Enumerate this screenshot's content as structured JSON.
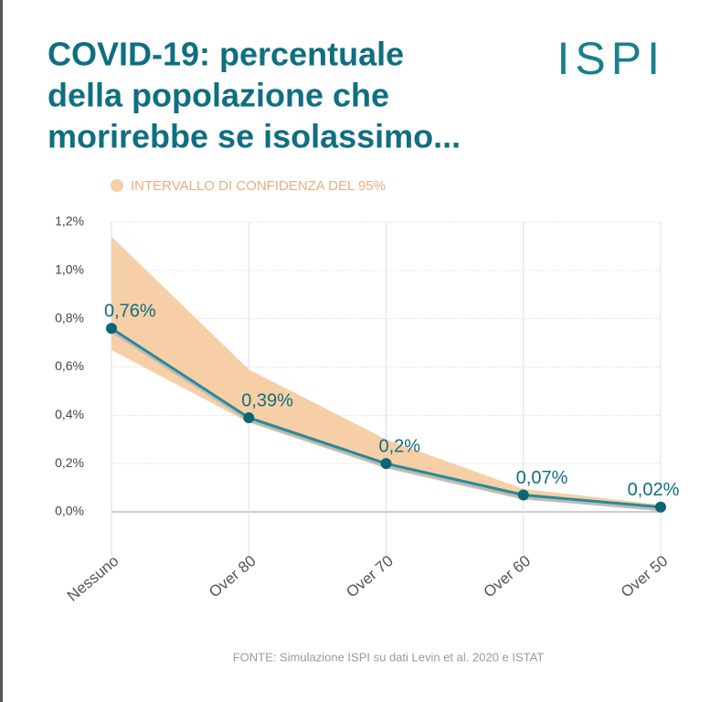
{
  "chart_data": {
    "type": "line",
    "title": [
      "COVID-19: percentuale",
      "della popolazione che",
      "morirebbe se isolassimo..."
    ],
    "logo": "ISPI",
    "source": "FONTE: Simulazione ISPI su dati Levin et al. 2020 e ISTAT",
    "categories": [
      "Nessuno",
      "Over 80",
      "Over 70",
      "Over 60",
      "Over 50"
    ],
    "series": [
      {
        "color": "#2a8a96",
        "values": [
          0.76,
          0.39,
          0.2,
          0.07,
          0.02
        ],
        "value_labels": [
          "0,76%",
          "0,39%",
          "0,2%",
          "0,07%",
          "0,02%"
        ]
      }
    ],
    "band": {
      "name": "INTERVALLO DI CONFIDENZA DEL 95%",
      "color": "#f7cfa6",
      "upper": [
        1.14,
        0.59,
        0.3,
        0.095,
        0.03
      ],
      "lower": [
        0.67,
        0.37,
        0.18,
        0.05,
        0.01
      ]
    },
    "ylim": [
      0,
      1.2
    ],
    "yticks": [
      {
        "value": 0,
        "label": "0,0%"
      },
      {
        "value": 0.2,
        "label": "0,2%"
      },
      {
        "value": 0.4,
        "label": "0,4%"
      },
      {
        "value": 0.6,
        "label": "0,6%"
      },
      {
        "value": 0.8,
        "label": "0,8%"
      },
      {
        "value": 1.0,
        "label": "1,0%"
      },
      {
        "value": 1.2,
        "label": "1,2%"
      }
    ],
    "grid": true
  }
}
